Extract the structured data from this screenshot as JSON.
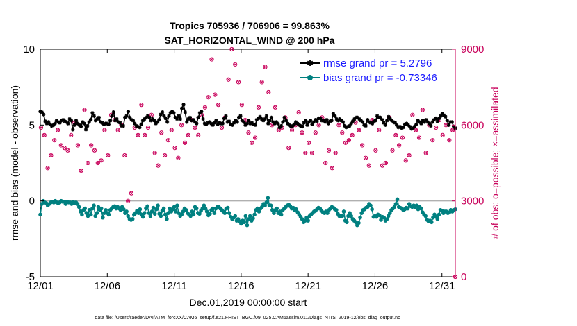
{
  "chart_data": {
    "type": "line",
    "title": "Tropics 705936 / 706906 = 99.863%",
    "subtitle": "SAT_HORIZONTAL_WIND @ 200 hPa",
    "xlabel": "Dec.01,2019 00:00:00 start",
    "ylabel": "rmse and bias (model - observation)",
    "ylabel_right": "# of obs: o=possible; ×=assimilated",
    "xlim": [
      0,
      31
    ],
    "ylim": [
      -5,
      10
    ],
    "ylim_right": [
      0,
      9000
    ],
    "xticks": [
      0,
      5,
      10,
      15,
      20,
      25,
      30
    ],
    "xtick_labels": [
      "12/01",
      "12/06",
      "12/11",
      "12/16",
      "12/21",
      "12/26",
      "12/31"
    ],
    "yticks": [
      -5,
      0,
      5,
      10
    ],
    "ytick_labels": [
      "-5",
      "0",
      "5",
      "10"
    ],
    "yticks_right": [
      0,
      3000,
      6000,
      9000
    ],
    "ytick_labels_right": [
      "0",
      "3000",
      "6000",
      "9000"
    ],
    "grid": false,
    "legend_position": "top-right",
    "series": [
      {
        "name": "rmse grand pr = 5.2796",
        "color": "#000000",
        "axis": "left",
        "values": [
          5.9,
          5.85,
          5.7,
          5.25,
          5.1,
          5.2,
          5.05,
          4.95,
          5.0,
          5.1,
          5.3,
          5.2,
          5.15,
          5.3,
          5.35,
          5.25,
          5.2,
          5.1,
          5.4,
          5.3,
          4.7,
          5.0,
          5.3,
          5.1,
          5.0,
          4.9,
          5.2,
          5.1,
          4.7,
          4.95,
          5.2,
          5.35,
          5.8,
          5.6,
          5.3,
          5.4,
          5.5,
          5.2,
          5.15,
          5.05,
          5.1,
          5.1,
          5.05,
          5.3,
          5.6,
          5.85,
          5.3,
          5.4,
          5.2,
          5.15,
          4.95,
          4.95,
          5.5,
          5.6,
          5.9,
          5.5,
          5.35,
          5.3,
          5.1,
          4.95,
          4.9,
          4.85,
          5.05,
          5.3,
          5.4,
          5.5,
          5.6,
          5.5,
          5.3,
          5.4,
          5.3,
          5.1,
          5.2,
          5.35,
          5.7,
          5.85,
          5.6,
          5.45,
          5.2,
          5.6,
          5.8,
          5.9,
          5.8,
          5.5,
          5.4,
          5.6,
          5.4,
          6.1,
          6.35,
          5.85,
          5.2,
          5.4,
          5.5,
          5.3,
          5.35,
          5.2,
          5.1,
          5.5,
          5.8,
          5.9,
          5.4,
          5.1,
          5.05,
          5.15,
          5.2,
          5.1,
          5.0,
          5.15,
          5.3,
          5.05,
          5.15,
          5.1,
          5.1,
          5.45,
          5.6,
          5.2,
          5.25,
          5.05,
          5.0,
          5.15,
          5.3,
          5.2,
          5.5,
          5.6,
          5.3,
          5.2,
          5.0,
          5.1,
          5.3,
          5.1,
          5.15,
          5.05,
          5.0,
          5.35,
          5.45,
          5.55,
          5.4,
          5.3,
          5.4,
          5.6,
          5.1,
          5.3,
          5.5,
          5.2,
          5.1,
          5.2,
          5.1,
          4.85,
          4.95,
          5.2,
          5.5,
          5.3,
          5.1,
          5.0,
          4.9,
          4.95,
          5.05,
          5.2,
          5.1,
          5.0,
          4.95,
          4.9,
          5.15,
          5.3,
          5.0,
          5.2,
          5.3,
          5.05,
          5.2,
          5.35,
          5.25,
          5.45,
          5.45,
          5.3,
          5.3,
          5.2,
          5.35,
          5.1,
          5.25,
          5.3,
          5.75,
          5.6,
          5.4,
          5.3,
          5.4,
          5.3,
          5.2,
          4.95,
          4.85,
          4.9,
          4.95,
          5.1,
          5.25,
          5.4,
          5.5,
          5.5,
          5.4,
          5.3,
          5.2,
          5.0,
          4.95,
          5.35,
          5.2,
          5.15,
          5.1,
          5.25,
          5.3,
          5.6,
          5.5,
          5.5,
          5.35,
          5.15,
          5.0,
          5.3,
          5.55,
          5.4,
          5.3,
          5.2,
          5.15,
          5.0,
          4.85,
          4.9,
          4.8,
          4.85,
          5.05,
          5.1,
          5.0,
          4.9,
          4.75,
          4.8,
          4.9,
          5.05,
          5.3,
          5.2,
          5.1,
          5.3,
          5.2,
          5.35,
          5.2,
          5.1,
          4.95,
          5.2,
          5.35,
          5.45,
          5.25,
          5.45,
          5.6,
          5.75,
          5.65,
          5.55,
          5.3,
          5.0,
          5.2,
          5.2,
          4.9,
          4.8
        ]
      },
      {
        "name": "bias grand pr = -0.73346",
        "color": "#008080",
        "axis": "left",
        "values": [
          -0.9,
          -0.2,
          0.0,
          -0.1,
          -0.15,
          -0.3,
          -0.2,
          -0.1,
          -0.05,
          -0.1,
          0.0,
          -0.1,
          -0.15,
          -0.1,
          0.0,
          -0.05,
          -0.05,
          -0.2,
          -0.05,
          -0.1,
          -0.1,
          -0.2,
          -0.05,
          -0.15,
          -0.1,
          -0.2,
          -0.4,
          -0.7,
          -0.9,
          -0.6,
          -0.5,
          -0.8,
          -1.0,
          -0.6,
          -0.9,
          -0.5,
          -0.3,
          -1.0,
          -0.8,
          -0.4,
          -0.6,
          -0.5,
          -1.1,
          -0.8,
          -0.6,
          -0.8,
          -0.9,
          -0.6,
          -0.5,
          -0.4,
          -0.35,
          -0.5,
          -0.4,
          -0.5,
          -0.6,
          -0.4,
          -0.55,
          -0.8,
          -0.7,
          -1.0,
          -1.2,
          -1.25,
          -1.2,
          -0.9,
          -0.8,
          -0.65,
          -0.8,
          -0.55,
          -0.9,
          -1.05,
          -0.8,
          -0.5,
          -0.35,
          -0.8,
          -1.0,
          -0.7,
          -0.45,
          -0.85,
          -0.55,
          -0.3,
          -0.85,
          -1.0,
          -0.65,
          -0.5,
          -0.9,
          -1.2,
          -0.8,
          -0.5,
          -0.7,
          -0.55,
          -0.4,
          -0.7,
          -0.3,
          -0.8,
          -1.0,
          -0.9,
          -0.7,
          -0.5,
          -0.6,
          -0.8,
          -0.9,
          -1.0,
          -0.7,
          -0.9,
          -0.4,
          -0.5,
          -0.8,
          -0.85,
          -0.65,
          -0.5,
          -0.3,
          -0.5,
          -0.7,
          -0.95,
          -0.85,
          -0.6,
          -0.5,
          -0.8,
          -0.5,
          -0.4,
          -0.4,
          -0.5,
          -0.6,
          -0.7,
          -0.8,
          -0.5,
          -0.45,
          -0.8,
          -1.05,
          -1.2,
          -1.1,
          -1.0,
          -1.3,
          -1.2,
          -1.35,
          -1.5,
          -1.3,
          -1.4,
          -1.0,
          -1.6,
          -1.2,
          -1.0,
          -1.3,
          -1.15,
          -0.9,
          -0.6,
          -0.5,
          -0.7,
          -0.5,
          -0.4,
          -0.2,
          -0.3,
          -0.1,
          0.2,
          -0.3,
          -0.3,
          -0.6,
          -0.8,
          -0.6,
          -0.5,
          -0.8,
          -0.7,
          -0.9,
          -0.6,
          -0.5,
          -0.4,
          -0.3,
          -0.25,
          -0.35,
          -0.5,
          -0.45,
          -0.6,
          -0.55,
          -0.75,
          -0.9,
          -1.05,
          -1.2,
          -1.4,
          -1.3,
          -1.1,
          -1.3,
          -1.0,
          -0.9,
          -0.8,
          -0.7,
          -0.65,
          -0.55,
          -0.45,
          -0.5,
          -0.65,
          -0.75,
          -0.8,
          -0.7,
          -0.8,
          -0.6,
          -0.5,
          -0.4,
          -0.45,
          -0.55,
          -0.6,
          -0.85,
          -1.0,
          -1.0,
          -1.0,
          -0.7,
          -1.3,
          -1.4,
          -1.0,
          -0.8,
          -1.0,
          -1.2,
          -1.3,
          -1.4,
          -1.6,
          -1.45,
          -1.1,
          -0.8,
          -0.6,
          -0.55,
          -0.45,
          -0.4,
          -0.2,
          -0.3,
          -0.55,
          -1.05,
          -1.0,
          -1.05,
          -0.9,
          -0.95,
          -1.25,
          -1.05,
          -1.1,
          -1.3,
          -1.2,
          -1.0,
          -0.8,
          -0.6,
          -0.5,
          -0.4,
          -0.2,
          0.1,
          -0.4,
          -0.45,
          -0.5,
          -0.6,
          -0.55,
          -0.45,
          -0.5,
          -0.2,
          -0.35,
          -0.4,
          -0.3,
          -0.4,
          -0.3,
          -0.55,
          -0.4,
          -0.5,
          -0.75,
          -0.9,
          -1.0,
          -1.25,
          -1.35,
          -1.3,
          -1.4,
          -1.1,
          -0.9,
          -1.05,
          -1.2,
          -0.9,
          -0.6,
          -0.65,
          -0.8,
          -0.7,
          -0.7,
          -0.8,
          -0.75,
          -0.6,
          -0.7,
          -0.6,
          -0.55
        ]
      },
      {
        "name": "# of obs possible",
        "color": "#c8005a",
        "axis": "right",
        "marker": "o",
        "x": [
          0.05,
          0.3,
          0.55,
          0.8,
          1.05,
          1.3,
          1.55,
          1.8,
          2.05,
          2.3,
          2.55,
          2.8,
          3.05,
          3.3,
          3.55,
          3.8,
          4.05,
          4.3,
          4.55,
          4.8,
          5.05,
          5.3,
          5.55,
          5.8,
          6.05,
          6.3,
          6.55,
          6.8,
          7.05,
          7.3,
          7.55,
          7.8,
          8.05,
          8.3,
          8.55,
          8.8,
          9.05,
          9.3,
          9.55,
          9.8,
          10.05,
          10.3,
          10.55,
          10.8,
          11.05,
          11.3,
          11.55,
          11.8,
          12.05,
          12.3,
          12.55,
          12.8,
          13.05,
          13.3,
          13.55,
          13.8,
          14.05,
          14.3,
          14.55,
          14.8,
          15.05,
          15.3,
          15.55,
          15.8,
          16.05,
          16.3,
          16.55,
          16.8,
          17.05,
          17.3,
          17.55,
          17.8,
          18.05,
          18.3,
          18.55,
          18.8,
          19.05,
          19.3,
          19.55,
          19.8,
          20.05,
          20.3,
          20.55,
          20.8,
          21.05,
          21.3,
          21.55,
          21.8,
          22.05,
          22.3,
          22.55,
          22.8,
          23.05,
          23.3,
          23.55,
          23.8,
          24.05,
          24.3,
          24.55,
          24.8,
          25.05,
          25.3,
          25.55,
          25.8,
          26.05,
          26.3,
          26.55,
          26.8,
          27.05,
          27.3,
          27.55,
          27.8,
          28.05,
          28.3,
          28.55,
          28.8,
          29.05,
          29.3,
          29.55,
          29.8,
          30.05,
          30.3,
          30.55,
          30.8,
          31.0
        ],
        "values": [
          5900,
          5600,
          4300,
          4800,
          5400,
          5800,
          5200,
          5100,
          5000,
          5600,
          6100,
          5200,
          4200,
          6600,
          4500,
          5200,
          5000,
          4500,
          4600,
          5800,
          4800,
          6400,
          6200,
          5800,
          6000,
          4800,
          3000,
          3300,
          5900,
          5600,
          6800,
          5600,
          5900,
          6400,
          4900,
          4400,
          5700,
          4800,
          5400,
          5800,
          5100,
          4700,
          6000,
          5300,
          5600,
          6200,
          5900,
          5600,
          6400,
          6700,
          7100,
          8600,
          7200,
          6800,
          5900,
          6300,
          7800,
          9000,
          8400,
          7700,
          6800,
          6200,
          5700,
          5300,
          5500,
          6700,
          7700,
          8300,
          7300,
          6000,
          6700,
          5800,
          5900,
          6300,
          5100,
          5800,
          6000,
          6500,
          5700,
          4900,
          5300,
          4900,
          5700,
          6000,
          6300,
          4500,
          5000,
          4300,
          4900,
          6000,
          5700,
          5300,
          5400,
          5600,
          6100,
          5800,
          5200,
          4700,
          4400,
          6200,
          5000,
          5800,
          4400,
          4500,
          6300,
          5000,
          5600,
          5200,
          5500,
          4600,
          4800,
          6400,
          5800,
          5500,
          6600,
          4900,
          6000,
          5400,
          5900,
          6200,
          5600,
          6000,
          5400,
          5800,
          0
        ]
      },
      {
        "name": "# of obs assimilated",
        "color": "#c8005a",
        "axis": "right",
        "marker": "x",
        "values_same_as_possible": true
      }
    ],
    "legend": [
      "rmse grand pr = 5.2796",
      "bias grand pr = -0.73346"
    ],
    "footnote": "data file: /Users/raeder/DAI/ATM_forcXX/CAM6_setup/f.e21.FHIST_BGC.f09_025.CAM6assim.011/Diags_NTrS_2019-12/obs_diag_output.nc"
  }
}
